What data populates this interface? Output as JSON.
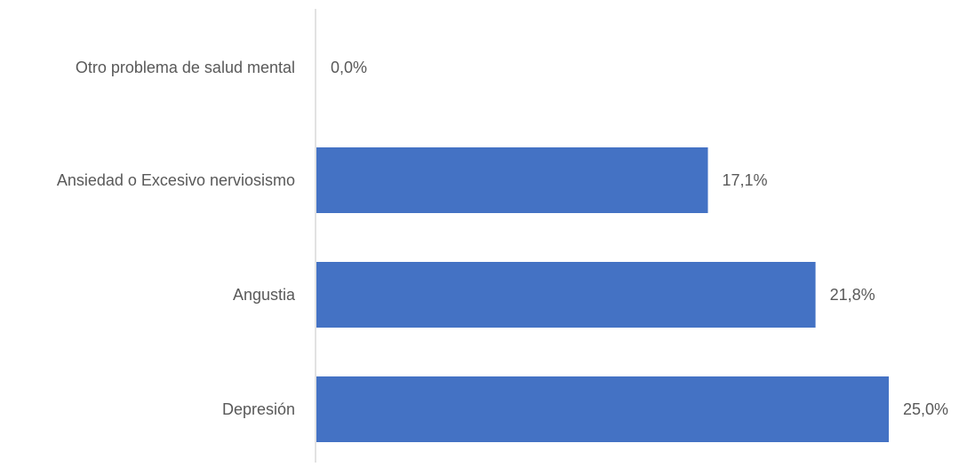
{
  "chart_data": {
    "type": "bar",
    "orientation": "horizontal",
    "categories": [
      "Otro problema de salud mental",
      "Ansiedad o Excesivo nerviosismo",
      "Angustia",
      "Depresión"
    ],
    "values": [
      0.0,
      17.1,
      21.8,
      25.0
    ],
    "data_labels": [
      "0,0%",
      "17,1%",
      "21,8%",
      "25,0%"
    ],
    "xlim": [
      0,
      25
    ],
    "grid": false,
    "legend": "none",
    "bar_color": "#4472C4",
    "axis_color": "#D9D9D9",
    "text_color": "#595959"
  }
}
